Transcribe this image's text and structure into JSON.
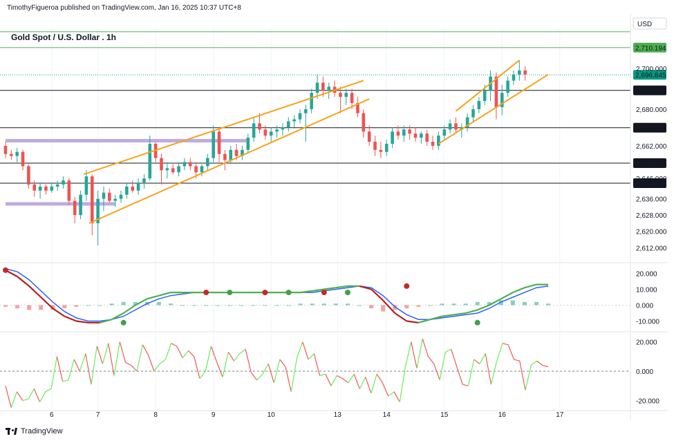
{
  "header": {
    "publisher": "TimothyFigueroa published on TradingView.com, Jan 16, 2025 10:37 UTC+8"
  },
  "footer": {
    "brand": "TradingView"
  },
  "colors": {
    "up": "#26a69a",
    "down": "#ef5350",
    "trendline": "#f7a21b",
    "zone": "#b39ddb",
    "macd_fast": "#4caf50",
    "macd_slow": "#2962ff",
    "macd_dark": "#b71c1c",
    "osc_up": "#66ee55",
    "osc_down": "#f0584f",
    "level_green": "#4caf50",
    "level_black": "#131722",
    "price_teal": "#089981"
  },
  "chart_data": [
    {
      "type": "candlestick",
      "title": "Gold Spot / U.S. Dollar . 1h",
      "currency": "USD",
      "ylim": [
        2606,
        2720
      ],
      "y_ticks": [
        "2,700.000",
        "2,680.000",
        "2,662.000",
        "2,646.000",
        "2,636.000",
        "2,628.000",
        "2,620.000",
        "2,612.000"
      ],
      "y_tick_values": [
        2700,
        2680,
        2662,
        2646,
        2636,
        2628,
        2620,
        2612
      ],
      "x_ticks": [
        "6",
        "7",
        "8",
        "9",
        "10",
        "13",
        "14",
        "15",
        "16",
        "17"
      ],
      "x_range": [
        0,
        108
      ],
      "x_tick_values": [
        8,
        16,
        26,
        36,
        46,
        57.5,
        66,
        76,
        86,
        96
      ],
      "levels": [
        {
          "value": 2710.194,
          "label": "2,710.194",
          "color": "green"
        },
        {
          "value": 2689.197,
          "label": "2,689.197",
          "color": "black"
        },
        {
          "value": 2670.882,
          "label": "2,670.882",
          "color": "black"
        },
        {
          "value": 2653.515,
          "label": "2,653.515",
          "color": "black"
        },
        {
          "value": 2643.644,
          "label": "2,643.644",
          "color": "black"
        }
      ],
      "top_level_value": 2718,
      "last_price": {
        "value": 2696.845,
        "label": "2,696.845"
      },
      "zones": [
        {
          "y": 2664.5,
          "x_start": 0,
          "x_end": 42
        },
        {
          "y": 2633.5,
          "x_start": 0,
          "x_end": 19
        }
      ],
      "trendlines": [
        {
          "x1": 13.5,
          "y1": 2648,
          "x2": 62,
          "y2": 2694
        },
        {
          "x1": 14.5,
          "y1": 2624,
          "x2": 63,
          "y2": 2685
        },
        {
          "x1": 78,
          "y1": 2679,
          "x2": 89,
          "y2": 2704
        },
        {
          "x1": 75,
          "y1": 2663,
          "x2": 94,
          "y2": 2697
        }
      ],
      "candles": [
        [
          2662,
          2664,
          2656,
          2658
        ],
        [
          2658,
          2660,
          2655,
          2657
        ],
        [
          2657,
          2661,
          2654,
          2659
        ],
        [
          2659,
          2660,
          2650,
          2652
        ],
        [
          2652,
          2653,
          2641,
          2643
        ],
        [
          2643,
          2645,
          2637,
          2640
        ],
        [
          2640,
          2644,
          2636,
          2642
        ],
        [
          2642,
          2643,
          2638,
          2640
        ],
        [
          2640,
          2644,
          2639,
          2642
        ],
        [
          2642,
          2645,
          2640,
          2643
        ],
        [
          2643,
          2647,
          2641,
          2645
        ],
        [
          2645,
          2646,
          2633,
          2635
        ],
        [
          2635,
          2637,
          2624,
          2628
        ],
        [
          2628,
          2640,
          2626,
          2638
        ],
        [
          2638,
          2650,
          2635,
          2647
        ],
        [
          2647,
          2648,
          2618,
          2624
        ],
        [
          2624,
          2640,
          2613,
          2636
        ],
        [
          2636,
          2642,
          2630,
          2639
        ],
        [
          2639,
          2641,
          2634,
          2635
        ],
        [
          2635,
          2638,
          2632,
          2636
        ],
        [
          2636,
          2640,
          2634,
          2638
        ],
        [
          2638,
          2644,
          2636,
          2642
        ],
        [
          2642,
          2645,
          2639,
          2640
        ],
        [
          2640,
          2646,
          2638,
          2644
        ],
        [
          2644,
          2648,
          2641,
          2646
        ],
        [
          2646,
          2667,
          2645,
          2663
        ],
        [
          2663,
          2664,
          2654,
          2656
        ],
        [
          2656,
          2658,
          2643,
          2650
        ],
        [
          2650,
          2654,
          2646,
          2651
        ],
        [
          2651,
          2653,
          2648,
          2649
        ],
        [
          2649,
          2654,
          2647,
          2652
        ],
        [
          2652,
          2656,
          2650,
          2654
        ],
        [
          2654,
          2656,
          2650,
          2652
        ],
        [
          2652,
          2654,
          2646,
          2649
        ],
        [
          2649,
          2653,
          2647,
          2652
        ],
        [
          2652,
          2658,
          2650,
          2656
        ],
        [
          2656,
          2672,
          2654,
          2669
        ],
        [
          2669,
          2671,
          2654,
          2658
        ],
        [
          2658,
          2660,
          2650,
          2655
        ],
        [
          2655,
          2662,
          2653,
          2660
        ],
        [
          2660,
          2663,
          2655,
          2657
        ],
        [
          2657,
          2662,
          2655,
          2660
        ],
        [
          2660,
          2668,
          2658,
          2666
        ],
        [
          2666,
          2676,
          2664,
          2673
        ],
        [
          2673,
          2678,
          2668,
          2670
        ],
        [
          2670,
          2672,
          2665,
          2667
        ],
        [
          2667,
          2671,
          2664,
          2669
        ],
        [
          2669,
          2672,
          2666,
          2670
        ],
        [
          2670,
          2673,
          2667,
          2671
        ],
        [
          2671,
          2676,
          2669,
          2674
        ],
        [
          2674,
          2677,
          2671,
          2675
        ],
        [
          2675,
          2680,
          2673,
          2678
        ],
        [
          2678,
          2682,
          2664,
          2680
        ],
        [
          2680,
          2690,
          2678,
          2688
        ],
        [
          2688,
          2697,
          2685,
          2693
        ],
        [
          2693,
          2696,
          2686,
          2689
        ],
        [
          2689,
          2693,
          2685,
          2691
        ],
        [
          2691,
          2694,
          2686,
          2688
        ],
        [
          2688,
          2691,
          2678,
          2686
        ],
        [
          2686,
          2690,
          2682,
          2688
        ],
        [
          2688,
          2690,
          2680,
          2683
        ],
        [
          2683,
          2686,
          2676,
          2678
        ],
        [
          2678,
          2680,
          2666,
          2669
        ],
        [
          2669,
          2672,
          2662,
          2664
        ],
        [
          2664,
          2667,
          2657,
          2660
        ],
        [
          2660,
          2664,
          2656,
          2659
        ],
        [
          2659,
          2665,
          2657,
          2663
        ],
        [
          2663,
          2671,
          2661,
          2669
        ],
        [
          2669,
          2672,
          2665,
          2667
        ],
        [
          2667,
          2672,
          2664,
          2670
        ],
        [
          2670,
          2672,
          2665,
          2668
        ],
        [
          2668,
          2671,
          2664,
          2666
        ],
        [
          2666,
          2669,
          2663,
          2668
        ],
        [
          2668,
          2670,
          2662,
          2664
        ],
        [
          2664,
          2667,
          2660,
          2662
        ],
        [
          2662,
          2669,
          2660,
          2667
        ],
        [
          2667,
          2672,
          2665,
          2670
        ],
        [
          2670,
          2675,
          2668,
          2673
        ],
        [
          2673,
          2676,
          2668,
          2670
        ],
        [
          2670,
          2673,
          2666,
          2671
        ],
        [
          2671,
          2678,
          2669,
          2676
        ],
        [
          2676,
          2682,
          2674,
          2680
        ],
        [
          2680,
          2686,
          2678,
          2684
        ],
        [
          2684,
          2692,
          2682,
          2689
        ],
        [
          2689,
          2699,
          2684,
          2696
        ],
        [
          2696,
          2698,
          2675,
          2681
        ],
        [
          2681,
          2692,
          2677,
          2688
        ],
        [
          2688,
          2696,
          2686,
          2694
        ],
        [
          2694,
          2699,
          2692,
          2697
        ],
        [
          2697,
          2704,
          2694,
          2699
        ],
        [
          2699,
          2701,
          2694,
          2697
        ]
      ]
    },
    {
      "type": "line",
      "name": "macd",
      "ylim": [
        -15,
        25
      ],
      "y_ticks": [
        "20.000",
        "10.000",
        "0.000",
        "-10.000"
      ],
      "y_tick_values": [
        20,
        10,
        0,
        -10
      ],
      "fast": [
        22,
        18,
        12,
        5,
        -2,
        -7,
        -10,
        -11,
        -11,
        -9,
        -5,
        0,
        4,
        6,
        8,
        8,
        8,
        8,
        8,
        8,
        8,
        8,
        8,
        8,
        8,
        8,
        9,
        10,
        11,
        12,
        12,
        10,
        3,
        -5,
        -10,
        -11,
        -9,
        -7,
        -6,
        -5,
        -3,
        0,
        4,
        8,
        11,
        13,
        13
      ],
      "slow": [
        23,
        21,
        16,
        9,
        2,
        -4,
        -8,
        -10,
        -10,
        -9,
        -7,
        -3,
        1,
        4,
        6,
        7,
        8,
        8,
        8,
        8,
        8,
        8,
        8,
        8,
        8,
        8,
        8,
        9,
        10,
        11,
        12,
        11,
        6,
        -1,
        -6,
        -9,
        -9,
        -8,
        -7,
        -6,
        -5,
        -2,
        2,
        5,
        8,
        11,
        12
      ],
      "hist": [
        -1,
        -2,
        -3,
        -3,
        -3,
        -2,
        -1,
        0,
        0,
        1,
        2,
        2,
        2,
        2,
        1,
        0,
        0,
        0,
        0,
        0,
        0,
        0,
        0,
        0,
        0,
        1,
        1,
        1,
        1,
        1,
        0,
        -2,
        -4,
        -3,
        -2,
        -1,
        0,
        1,
        1,
        1,
        2,
        2,
        3,
        3,
        2,
        2,
        1
      ],
      "crosses": [
        {
          "i": 0,
          "v": 22,
          "c": "red"
        },
        {
          "i": 10,
          "v": -11,
          "c": "green"
        },
        {
          "i": 17,
          "v": 8,
          "c": "red"
        },
        {
          "i": 19,
          "v": 8,
          "c": "green"
        },
        {
          "i": 22,
          "v": 8,
          "c": "red"
        },
        {
          "i": 24,
          "v": 8,
          "c": "green"
        },
        {
          "i": 27,
          "v": 8,
          "c": "red"
        },
        {
          "i": 29,
          "v": 8,
          "c": "green"
        },
        {
          "i": 34,
          "v": 12,
          "c": "red"
        },
        {
          "i": 40,
          "v": -11,
          "c": "green"
        }
      ]
    },
    {
      "type": "line",
      "name": "oscillator",
      "ylim": [
        -25,
        25
      ],
      "y_ticks": [
        "20.000",
        "0.000",
        "-20.000"
      ],
      "y_tick_values": [
        20,
        0,
        -20
      ],
      "values": [
        -10,
        -25,
        -14,
        -20,
        -19,
        -12,
        -21,
        -14,
        -12,
        10,
        -7,
        -6,
        8,
        0,
        12,
        -9,
        17,
        5,
        19,
        -3,
        20,
        6,
        4,
        0,
        18,
        11,
        0,
        5,
        8,
        19,
        17,
        9,
        14,
        10,
        -5,
        0,
        17,
        6,
        -4,
        13,
        7,
        12,
        15,
        -1,
        -6,
        -2,
        5,
        -8,
        8,
        3,
        -14,
        9,
        20,
        8,
        12,
        -3,
        -2,
        -10,
        -3,
        -5,
        -8,
        -2,
        -12,
        -4,
        -15,
        -2,
        -8,
        -17,
        -14,
        -21,
        3,
        20,
        2,
        22,
        10,
        5,
        -6,
        13,
        15,
        3,
        -9,
        -10,
        8,
        5,
        12,
        -9,
        7,
        19,
        18,
        8,
        7,
        -13,
        4,
        7,
        4,
        3
      ]
    }
  ]
}
